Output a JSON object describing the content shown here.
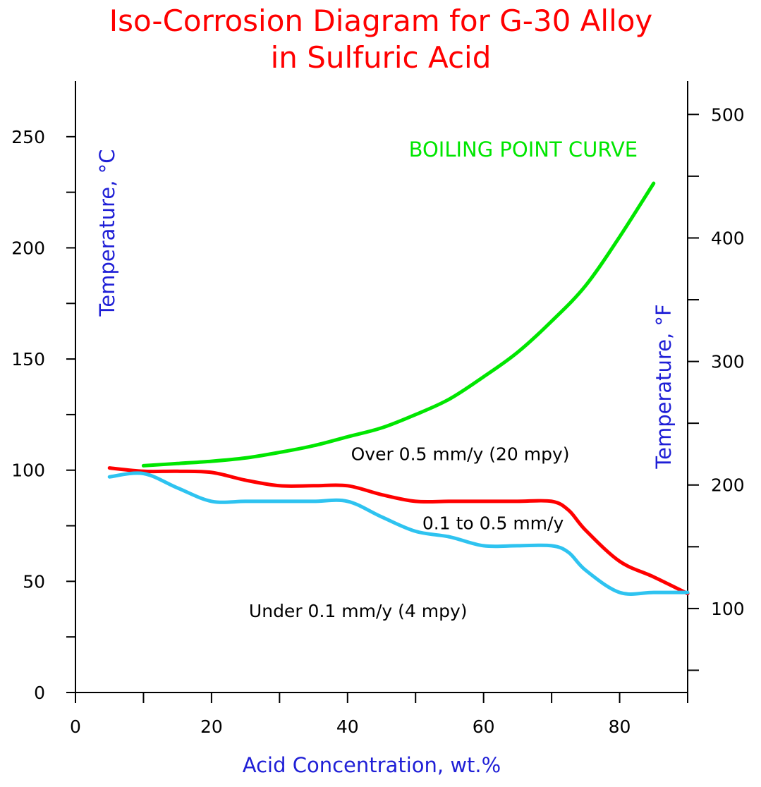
{
  "title": {
    "line1": "Iso-Corrosion Diagram for G-30 Alloy",
    "line2": "in Sulfuric Acid"
  },
  "chart_data": {
    "type": "line",
    "xlabel": "Acid Concentration, wt.%",
    "ylabel_left": "Temperature, °C",
    "ylabel_right": "Temperature, °F",
    "xlim": [
      0,
      90
    ],
    "ylim_left": [
      0,
      275
    ],
    "ylim_right_F": [
      32,
      527
    ],
    "x_ticks": [
      0,
      10,
      20,
      30,
      40,
      50,
      60,
      70,
      80,
      90
    ],
    "x_tick_labels": [
      "0",
      "20",
      "40",
      "60",
      "80"
    ],
    "x_tick_label_values": [
      0,
      20,
      40,
      60,
      80
    ],
    "y_ticks_left": [
      0,
      25,
      50,
      75,
      100,
      125,
      150,
      175,
      200,
      225,
      250
    ],
    "y_tick_labels_left": [
      "0",
      "50",
      "100",
      "150",
      "200",
      "250"
    ],
    "y_tick_label_values_left": [
      0,
      50,
      100,
      150,
      200,
      250
    ],
    "y_ticks_right_F": [
      50,
      100,
      150,
      200,
      250,
      300,
      350,
      400,
      450,
      500
    ],
    "y_tick_labels_right": [
      "100",
      "200",
      "300",
      "400",
      "500"
    ],
    "y_tick_label_values_right_F": [
      100,
      200,
      300,
      400,
      500
    ],
    "grid": false,
    "annotations": [
      {
        "text": "BOILING POINT CURVE",
        "x": 49,
        "y": 241,
        "color": "#00e600",
        "kind": "boiling"
      },
      {
        "text": "Over 0.5 mm/y (20 mpy)",
        "x": 40.5,
        "y": 104.5,
        "color": "#000000",
        "kind": "region"
      },
      {
        "text": "0.1 to 0.5 mm/y",
        "x": 51,
        "y": 73.5,
        "color": "#000000",
        "kind": "region"
      },
      {
        "text": "Under 0.1 mm/y (4 mpy)",
        "x": 25.5,
        "y": 34,
        "color": "#000000",
        "kind": "region"
      }
    ],
    "series": [
      {
        "color": "#00e600",
        "x": [
          10,
          15,
          20,
          25,
          30,
          35,
          40,
          45,
          50,
          55,
          60,
          65,
          70,
          75,
          80,
          85
        ],
        "y": [
          102,
          103,
          104,
          105.5,
          108,
          111,
          115,
          119,
          125,
          132,
          142,
          153,
          167,
          183,
          205,
          229
        ]
      },
      {
        "color": "#ff0000",
        "x": [
          5,
          10,
          15,
          20,
          25,
          30,
          35,
          40,
          45,
          50,
          55,
          60,
          65,
          70,
          72.5,
          75,
          80,
          85,
          90
        ],
        "y": [
          101,
          99.5,
          99.5,
          99,
          95.5,
          93,
          93,
          93,
          89,
          86,
          86,
          86,
          86,
          86,
          82,
          73,
          59,
          52,
          44.5
        ]
      },
      {
        "color": "#2ec3f0",
        "x": [
          5,
          10,
          15,
          20,
          25,
          30,
          35,
          40,
          45,
          50,
          55,
          60,
          65,
          70,
          72.5,
          75,
          80,
          85,
          90
        ],
        "y": [
          97,
          98.5,
          92,
          86,
          86,
          86,
          86,
          86,
          79,
          72.5,
          70,
          66,
          66,
          66,
          63,
          55,
          45,
          45,
          45
        ]
      }
    ]
  }
}
